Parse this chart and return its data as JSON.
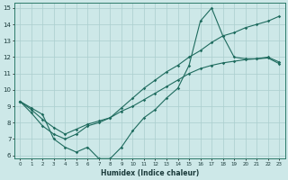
{
  "xlabel": "Humidex (Indice chaleur)",
  "bg_color": "#cde8e8",
  "grid_color": "#aacece",
  "line_color": "#1e6b5e",
  "series1_x": [
    0,
    1,
    2,
    3,
    4,
    5,
    6,
    7,
    8,
    9,
    10,
    11,
    12,
    13,
    14,
    15,
    16,
    17,
    18,
    19,
    20,
    21,
    22,
    23
  ],
  "series1_y": [
    9.3,
    8.9,
    8.5,
    7.0,
    6.5,
    6.2,
    6.5,
    5.8,
    5.8,
    6.5,
    7.5,
    8.3,
    8.8,
    9.5,
    10.1,
    11.5,
    14.2,
    15.0,
    13.3,
    12.0,
    11.9,
    11.9,
    12.0,
    11.7
  ],
  "series2_x": [
    0,
    1,
    2,
    3,
    4,
    5,
    6,
    7,
    8,
    9,
    10,
    11,
    12,
    13,
    14,
    15,
    16,
    17,
    18,
    19,
    20,
    21,
    22,
    23
  ],
  "series2_y": [
    9.3,
    8.8,
    8.2,
    7.7,
    7.3,
    7.6,
    7.9,
    8.1,
    8.3,
    8.7,
    9.0,
    9.4,
    9.8,
    10.2,
    10.6,
    11.0,
    11.3,
    11.5,
    11.65,
    11.75,
    11.85,
    11.9,
    11.95,
    11.6
  ],
  "series3_x": [
    0,
    1,
    2,
    3,
    4,
    5,
    6,
    7,
    8,
    9,
    10,
    11,
    12,
    13,
    14,
    15,
    16,
    17,
    18,
    19,
    20,
    21,
    22,
    23
  ],
  "series3_y": [
    9.3,
    8.6,
    7.8,
    7.3,
    7.0,
    7.3,
    7.8,
    8.0,
    8.3,
    8.9,
    9.5,
    10.1,
    10.6,
    11.1,
    11.5,
    12.0,
    12.4,
    12.9,
    13.3,
    13.5,
    13.8,
    14.0,
    14.2,
    14.5
  ],
  "xlim": [
    -0.5,
    23.5
  ],
  "ylim": [
    5.8,
    15.3
  ],
  "xtick_labels": [
    "0",
    "1",
    "2",
    "3",
    "4",
    "5",
    "6",
    "7",
    "8",
    "9",
    "10",
    "11",
    "12",
    "13",
    "14",
    "15",
    "16",
    "17",
    "18",
    "19",
    "20",
    "21",
    "22",
    "23"
  ],
  "ytick_labels": [
    "6",
    "7",
    "8",
    "9",
    "10",
    "11",
    "12",
    "13",
    "14",
    "15"
  ]
}
